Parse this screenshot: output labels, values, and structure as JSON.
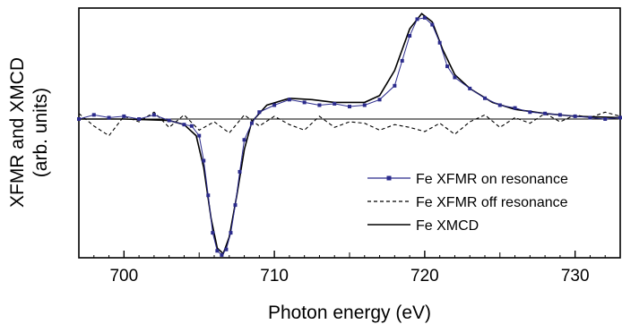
{
  "chart_data": {
    "type": "line",
    "title": "",
    "xlabel": "Photon energy (eV)",
    "ylabel_line1": "XFMR and XMCD",
    "ylabel_line2": "(arb. units)",
    "xlim": [
      697,
      733
    ],
    "ylim": [
      -1.0,
      0.8
    ],
    "x_ticks": [
      700,
      710,
      720,
      730
    ],
    "x_tick_labels": [
      "700",
      "710",
      "720",
      "730"
    ],
    "baseline": 0,
    "grid": false,
    "legend_position": "bottom-right",
    "series": [
      {
        "name": "Fe XFMR on resonance",
        "style": "markers-line",
        "color": "#2b2b8c",
        "points": [
          [
            697,
            0.0
          ],
          [
            698,
            0.03
          ],
          [
            699,
            0.01
          ],
          [
            700,
            0.02
          ],
          [
            701,
            0.0
          ],
          [
            702,
            0.03
          ],
          [
            703,
            -0.01
          ],
          [
            704,
            -0.04
          ],
          [
            704.5,
            -0.05
          ],
          [
            705,
            -0.12
          ],
          [
            705.3,
            -0.3
          ],
          [
            705.6,
            -0.55
          ],
          [
            705.9,
            -0.82
          ],
          [
            706.2,
            -0.95
          ],
          [
            706.5,
            -0.98
          ],
          [
            706.8,
            -0.94
          ],
          [
            707.1,
            -0.82
          ],
          [
            707.4,
            -0.62
          ],
          [
            707.7,
            -0.38
          ],
          [
            708,
            -0.15
          ],
          [
            708.5,
            -0.03
          ],
          [
            709,
            0.05
          ],
          [
            710,
            0.1
          ],
          [
            711,
            0.14
          ],
          [
            712,
            0.12
          ],
          [
            713,
            0.1
          ],
          [
            714,
            0.11
          ],
          [
            715,
            0.09
          ],
          [
            716,
            0.1
          ],
          [
            717,
            0.14
          ],
          [
            718,
            0.24
          ],
          [
            718.5,
            0.42
          ],
          [
            719,
            0.6
          ],
          [
            719.5,
            0.72
          ],
          [
            720,
            0.73
          ],
          [
            720.5,
            0.68
          ],
          [
            721,
            0.55
          ],
          [
            721.5,
            0.38
          ],
          [
            722,
            0.3
          ],
          [
            723,
            0.22
          ],
          [
            724,
            0.15
          ],
          [
            725,
            0.1
          ],
          [
            726,
            0.08
          ],
          [
            727,
            0.05
          ],
          [
            728,
            0.04
          ],
          [
            729,
            0.03
          ],
          [
            730,
            0.02
          ],
          [
            731,
            0.01
          ],
          [
            732,
            0.0
          ],
          [
            733,
            0.01
          ]
        ]
      },
      {
        "name": "Fe XFMR off resonance",
        "style": "dashed",
        "color": "#000000",
        "points": [
          [
            697,
            0.04
          ],
          [
            698,
            -0.05
          ],
          [
            699,
            -0.12
          ],
          [
            700,
            0.02
          ],
          [
            701,
            -0.02
          ],
          [
            702,
            0.05
          ],
          [
            703,
            -0.06
          ],
          [
            704,
            0.03
          ],
          [
            705,
            -0.08
          ],
          [
            706,
            -0.02
          ],
          [
            707,
            -0.1
          ],
          [
            708,
            0.03
          ],
          [
            709,
            -0.05
          ],
          [
            710,
            0.02
          ],
          [
            711,
            -0.04
          ],
          [
            712,
            -0.08
          ],
          [
            713,
            0.02
          ],
          [
            714,
            -0.06
          ],
          [
            715,
            -0.02
          ],
          [
            716,
            -0.03
          ],
          [
            717,
            -0.08
          ],
          [
            718,
            -0.04
          ],
          [
            719,
            -0.06
          ],
          [
            720,
            -0.09
          ],
          [
            721,
            -0.03
          ],
          [
            722,
            -0.11
          ],
          [
            723,
            -0.02
          ],
          [
            724,
            0.03
          ],
          [
            725,
            -0.06
          ],
          [
            726,
            0.01
          ],
          [
            727,
            -0.03
          ],
          [
            728,
            0.04
          ],
          [
            729,
            -0.02
          ],
          [
            730,
            0.03
          ],
          [
            731,
            0.01
          ],
          [
            732,
            0.05
          ],
          [
            733,
            0.02
          ]
        ]
      },
      {
        "name": "Fe XMCD",
        "style": "solid",
        "color": "#000000",
        "points": [
          [
            697,
            0.0
          ],
          [
            700,
            0.0
          ],
          [
            703,
            -0.01
          ],
          [
            704,
            -0.04
          ],
          [
            704.8,
            -0.12
          ],
          [
            705.3,
            -0.35
          ],
          [
            705.8,
            -0.72
          ],
          [
            706.2,
            -0.93
          ],
          [
            706.6,
            -0.97
          ],
          [
            707,
            -0.85
          ],
          [
            707.5,
            -0.55
          ],
          [
            708,
            -0.22
          ],
          [
            708.5,
            -0.02
          ],
          [
            709.5,
            0.1
          ],
          [
            711,
            0.15
          ],
          [
            712.5,
            0.14
          ],
          [
            714,
            0.12
          ],
          [
            716,
            0.12
          ],
          [
            717,
            0.17
          ],
          [
            718,
            0.35
          ],
          [
            719,
            0.65
          ],
          [
            719.8,
            0.76
          ],
          [
            720.5,
            0.7
          ],
          [
            721.2,
            0.5
          ],
          [
            722,
            0.32
          ],
          [
            723,
            0.22
          ],
          [
            724.5,
            0.12
          ],
          [
            726,
            0.07
          ],
          [
            728,
            0.04
          ],
          [
            730,
            0.02
          ],
          [
            733,
            0.01
          ]
        ]
      }
    ]
  }
}
